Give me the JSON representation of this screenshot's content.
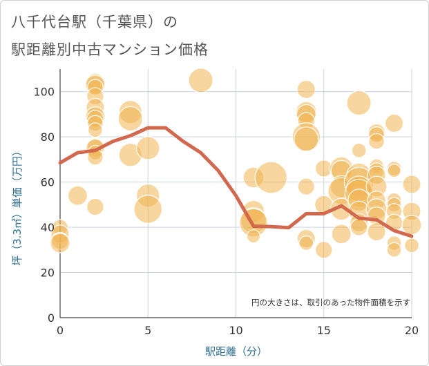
{
  "title_line1": "八千代台駅（千葉県）の",
  "title_line2": "駅距離別中古マンション価格",
  "chart_data": {
    "type": "scatter",
    "xlabel": "駅距離（分）",
    "ylabel": "坪（3.3㎡）単価（万円）",
    "note": "円の大きさは、取引のあった物件面積を示す",
    "xlim": [
      0,
      20
    ],
    "ylim": [
      0,
      110
    ],
    "xticks": [
      0,
      5,
      10,
      15,
      20
    ],
    "yticks": [
      0,
      20,
      40,
      60,
      80,
      100
    ],
    "grid": true,
    "colors": {
      "bubble": "#f0b552",
      "line": "#d2694f",
      "grid": "#c9d3dc"
    },
    "bubbles": [
      {
        "x": 0,
        "y": 40,
        "s": 0.35
      },
      {
        "x": 0,
        "y": 37,
        "s": 0.45
      },
      {
        "x": 0,
        "y": 34,
        "s": 0.4
      },
      {
        "x": 0,
        "y": 33,
        "s": 0.5
      },
      {
        "x": 1,
        "y": 54,
        "s": 0.5
      },
      {
        "x": 2,
        "y": 104,
        "s": 0.45
      },
      {
        "x": 2,
        "y": 103,
        "s": 0.5
      },
      {
        "x": 2,
        "y": 102,
        "s": 0.35
      },
      {
        "x": 2,
        "y": 98,
        "s": 0.4
      },
      {
        "x": 2,
        "y": 93,
        "s": 0.45
      },
      {
        "x": 2,
        "y": 89,
        "s": 0.5
      },
      {
        "x": 2,
        "y": 88,
        "s": 0.4
      },
      {
        "x": 2,
        "y": 86,
        "s": 0.35
      },
      {
        "x": 2,
        "y": 83,
        "s": 0.3
      },
      {
        "x": 2,
        "y": 76,
        "s": 0.35
      },
      {
        "x": 2,
        "y": 75,
        "s": 0.45
      },
      {
        "x": 2,
        "y": 73,
        "s": 0.3
      },
      {
        "x": 2,
        "y": 71,
        "s": 0.35
      },
      {
        "x": 2,
        "y": 49,
        "s": 0.4
      },
      {
        "x": 4,
        "y": 91,
        "s": 0.65
      },
      {
        "x": 4,
        "y": 88,
        "s": 0.7
      },
      {
        "x": 4,
        "y": 72,
        "s": 0.65
      },
      {
        "x": 5,
        "y": 75,
        "s": 0.65
      },
      {
        "x": 5,
        "y": 54,
        "s": 0.65
      },
      {
        "x": 5,
        "y": 48,
        "s": 0.85
      },
      {
        "x": 8,
        "y": 105,
        "s": 0.7
      },
      {
        "x": 11,
        "y": 62,
        "s": 0.55
      },
      {
        "x": 11,
        "y": 47,
        "s": 0.6
      },
      {
        "x": 11,
        "y": 43,
        "s": 0.75
      },
      {
        "x": 11,
        "y": 42,
        "s": 0.85
      },
      {
        "x": 11,
        "y": 36,
        "s": 0.25
      },
      {
        "x": 12,
        "y": 62,
        "s": 1.0
      },
      {
        "x": 14,
        "y": 101,
        "s": 0.45
      },
      {
        "x": 14,
        "y": 91,
        "s": 0.55
      },
      {
        "x": 14,
        "y": 90,
        "s": 0.5
      },
      {
        "x": 14,
        "y": 87,
        "s": 0.4
      },
      {
        "x": 14,
        "y": 80,
        "s": 0.85
      },
      {
        "x": 14,
        "y": 79,
        "s": 0.7
      },
      {
        "x": 14,
        "y": 58,
        "s": 0.4
      },
      {
        "x": 14,
        "y": 35,
        "s": 0.45
      },
      {
        "x": 14,
        "y": 33,
        "s": 0.3
      },
      {
        "x": 15,
        "y": 66,
        "s": 0.4
      },
      {
        "x": 15,
        "y": 50,
        "s": 0.45
      },
      {
        "x": 15,
        "y": 30,
        "s": 0.4
      },
      {
        "x": 16,
        "y": 66,
        "s": 0.65
      },
      {
        "x": 16,
        "y": 65,
        "s": 0.55
      },
      {
        "x": 16,
        "y": 58,
        "s": 0.6
      },
      {
        "x": 16,
        "y": 56,
        "s": 0.8
      },
      {
        "x": 16,
        "y": 48,
        "s": 0.6
      },
      {
        "x": 16,
        "y": 37,
        "s": 0.5
      },
      {
        "x": 17,
        "y": 95,
        "s": 0.7
      },
      {
        "x": 17,
        "y": 74,
        "s": 0.3
      },
      {
        "x": 17,
        "y": 63,
        "s": 0.7
      },
      {
        "x": 17,
        "y": 60,
        "s": 0.9
      },
      {
        "x": 17,
        "y": 57,
        "s": 0.75
      },
      {
        "x": 17,
        "y": 55,
        "s": 0.85
      },
      {
        "x": 17,
        "y": 52,
        "s": 0.6
      },
      {
        "x": 17,
        "y": 47,
        "s": 0.55
      },
      {
        "x": 17,
        "y": 42,
        "s": 0.45
      },
      {
        "x": 17,
        "y": 40,
        "s": 0.4
      },
      {
        "x": 18,
        "y": 82,
        "s": 0.4
      },
      {
        "x": 18,
        "y": 81,
        "s": 0.35
      },
      {
        "x": 18,
        "y": 78,
        "s": 0.35
      },
      {
        "x": 18,
        "y": 67,
        "s": 0.3
      },
      {
        "x": 18,
        "y": 65,
        "s": 0.35
      },
      {
        "x": 18,
        "y": 63,
        "s": 0.45
      },
      {
        "x": 18,
        "y": 58,
        "s": 0.55
      },
      {
        "x": 18,
        "y": 52,
        "s": 0.45
      },
      {
        "x": 18,
        "y": 48,
        "s": 0.55
      },
      {
        "x": 18,
        "y": 45,
        "s": 0.45
      },
      {
        "x": 18,
        "y": 38,
        "s": 0.45
      },
      {
        "x": 19,
        "y": 86,
        "s": 0.45
      },
      {
        "x": 19,
        "y": 66,
        "s": 0.3
      },
      {
        "x": 19,
        "y": 65,
        "s": 0.25
      },
      {
        "x": 19,
        "y": 52,
        "s": 0.3
      },
      {
        "x": 19,
        "y": 50,
        "s": 0.3
      },
      {
        "x": 19,
        "y": 47,
        "s": 0.35
      },
      {
        "x": 19,
        "y": 42,
        "s": 0.4
      },
      {
        "x": 19,
        "y": 33,
        "s": 0.3
      },
      {
        "x": 19,
        "y": 30,
        "s": 0.3
      },
      {
        "x": 20,
        "y": 59,
        "s": 0.45
      },
      {
        "x": 20,
        "y": 47,
        "s": 0.45
      },
      {
        "x": 20,
        "y": 41,
        "s": 0.5
      },
      {
        "x": 20,
        "y": 32,
        "s": 0.3
      }
    ],
    "line": {
      "x": [
        0,
        1,
        2,
        3,
        4,
        5,
        6,
        7,
        8,
        9,
        10,
        11,
        12,
        13,
        14,
        15,
        16,
        17,
        18,
        19,
        20
      ],
      "y": [
        68.5,
        73,
        74,
        78,
        80.5,
        84,
        84,
        78,
        73,
        65,
        54,
        40.5,
        40.3,
        39.8,
        46,
        46,
        49.5,
        44,
        43.3,
        38.5,
        36
      ]
    }
  }
}
